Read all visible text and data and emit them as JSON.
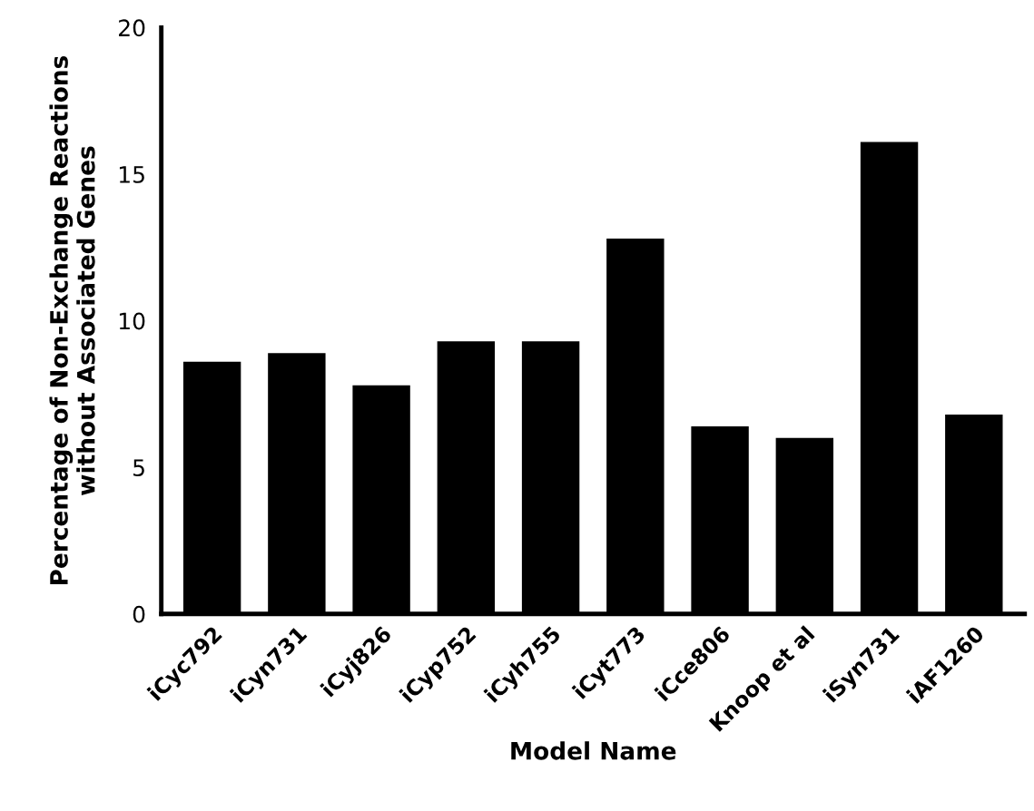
{
  "chart_data": {
    "type": "bar",
    "categories": [
      "iCyc792",
      "iCyn731",
      "iCyj826",
      "iCyp752",
      "iCyh755",
      "iCyt773",
      "iCce806",
      "Knoop et al",
      "iSyn731",
      "iAF1260"
    ],
    "values": [
      8.6,
      8.9,
      7.8,
      9.3,
      9.3,
      12.8,
      6.4,
      6.0,
      16.1,
      6.8
    ],
    "color": "#000000",
    "xlabel": "Model Name",
    "ylabel": "Percentage of Non-Exchange Reactions\nwithout Associated Genes",
    "ylim": [
      0,
      20
    ],
    "yticks": [
      0,
      5,
      10,
      15,
      20
    ],
    "grid": false,
    "legend": false
  }
}
